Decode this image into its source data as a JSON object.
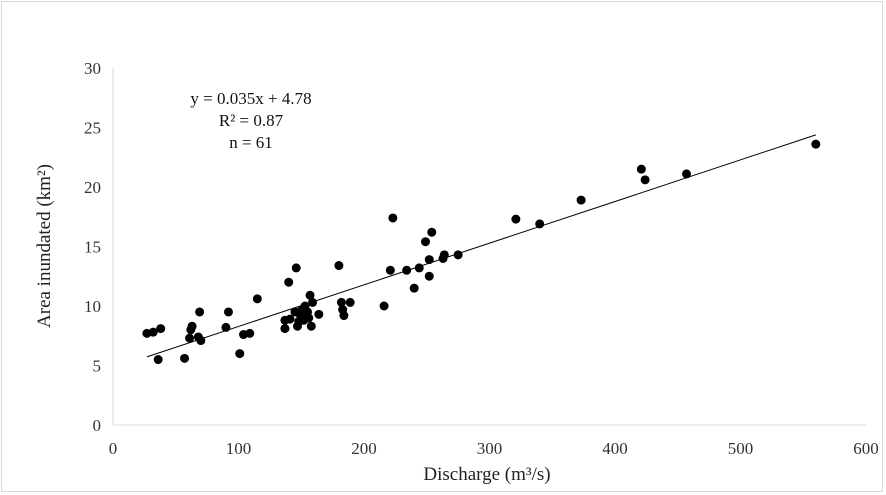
{
  "chart_data": {
    "type": "scatter",
    "title": "",
    "xlabel": "Discharge (m³/s)",
    "ylabel": "Area inundated (km²)",
    "xlim": [
      0,
      600
    ],
    "ylim": [
      0,
      30
    ],
    "x_ticks": [
      "0",
      "100",
      "200",
      "300",
      "400",
      "500",
      "600"
    ],
    "y_ticks": [
      "0",
      "5",
      "10",
      "15",
      "20",
      "25",
      "30"
    ],
    "grid": false,
    "legend": "none",
    "annotations": [
      "y = 0.035x + 4.78",
      "R² = 0.87",
      "n = 61"
    ],
    "trendline": {
      "slope": 0.035,
      "intercept": 4.78,
      "x_range": [
        27,
        560
      ]
    },
    "series": [
      {
        "points": [
          [
            27,
            7.7
          ],
          [
            32,
            7.8
          ],
          [
            36,
            5.5
          ],
          [
            38,
            8.1
          ],
          [
            57,
            5.6
          ],
          [
            61,
            7.3
          ],
          [
            62,
            8.0
          ],
          [
            63,
            8.3
          ],
          [
            68,
            7.4
          ],
          [
            69,
            9.5
          ],
          [
            70,
            7.1
          ],
          [
            90,
            8.2
          ],
          [
            92,
            9.5
          ],
          [
            101,
            6.0
          ],
          [
            104,
            7.6
          ],
          [
            109,
            7.7
          ],
          [
            115,
            10.6
          ],
          [
            137,
            8.1
          ],
          [
            137,
            8.8
          ],
          [
            140,
            12.0
          ],
          [
            141,
            8.9
          ],
          [
            145,
            9.5
          ],
          [
            146,
            13.2
          ],
          [
            147,
            8.3
          ],
          [
            148,
            8.7
          ],
          [
            149,
            9.3
          ],
          [
            150,
            9.6
          ],
          [
            152,
            8.8
          ],
          [
            153,
            10.0
          ],
          [
            154,
            9.2
          ],
          [
            155,
            9.5
          ],
          [
            156,
            9.0
          ],
          [
            157,
            10.9
          ],
          [
            158,
            8.3
          ],
          [
            159,
            10.3
          ],
          [
            164,
            9.3
          ],
          [
            180,
            13.4
          ],
          [
            182,
            10.3
          ],
          [
            183,
            9.7
          ],
          [
            184,
            9.2
          ],
          [
            189,
            10.3
          ],
          [
            216,
            10.0
          ],
          [
            221,
            13.0
          ],
          [
            223,
            17.4
          ],
          [
            234,
            13.0
          ],
          [
            240,
            11.5
          ],
          [
            244,
            13.2
          ],
          [
            249,
            15.4
          ],
          [
            252,
            13.9
          ],
          [
            252,
            12.5
          ],
          [
            254,
            16.2
          ],
          [
            263,
            14.0
          ],
          [
            264,
            14.3
          ],
          [
            275,
            14.3
          ],
          [
            321,
            17.3
          ],
          [
            340,
            16.9
          ],
          [
            373,
            18.9
          ],
          [
            421,
            21.5
          ],
          [
            424,
            20.6
          ],
          [
            457,
            21.1
          ],
          [
            560,
            23.6
          ]
        ]
      }
    ]
  }
}
